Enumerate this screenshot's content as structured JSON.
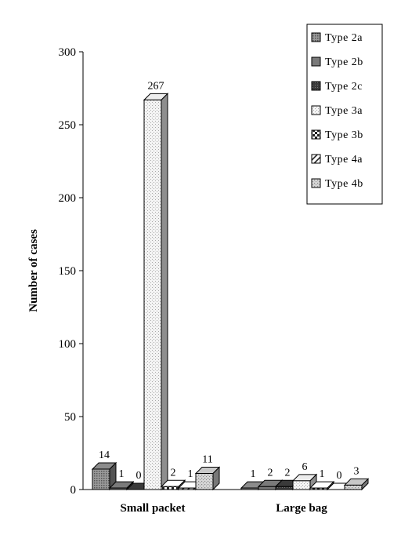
{
  "chart_data": {
    "type": "bar",
    "categories": [
      "Small packet",
      "Large bag"
    ],
    "series": [
      {
        "name": "Type 2a",
        "values": [
          14,
          1
        ],
        "color": "#8c8c8c",
        "pattern": "dense-dots"
      },
      {
        "name": "Type 2b",
        "values": [
          1,
          2
        ],
        "color": "#7a7a7a",
        "pattern": "solid-mid"
      },
      {
        "name": "Type 2c",
        "values": [
          0,
          2
        ],
        "color": "#3a3a3a",
        "pattern": "dark"
      },
      {
        "name": "Type 3a",
        "values": [
          267,
          6
        ],
        "color": "#ededed",
        "pattern": "light-dots"
      },
      {
        "name": "Type 3b",
        "values": [
          2,
          1
        ],
        "color": "#ffffff",
        "pattern": "checker"
      },
      {
        "name": "Type 4a",
        "values": [
          1,
          0
        ],
        "color": "#ffffff",
        "pattern": "diagonal"
      },
      {
        "name": "Type 4b",
        "values": [
          11,
          3
        ],
        "color": "#c8c8c8",
        "pattern": "medium-dots"
      }
    ],
    "ylabel": "Number of cases",
    "xlabel": "",
    "ylim": [
      0,
      300
    ],
    "yticks": [
      0,
      50,
      100,
      150,
      200,
      250,
      300
    ],
    "grid": false,
    "legend": "top-right",
    "view": "3d"
  }
}
